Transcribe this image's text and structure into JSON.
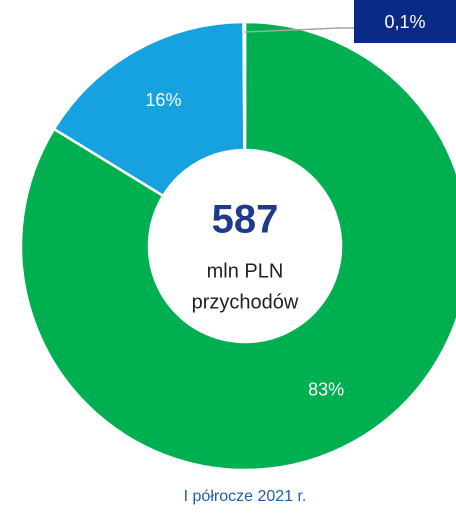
{
  "chart_data": {
    "type": "donut",
    "values": [
      83,
      16,
      0.1
    ],
    "value_labels": [
      "83%",
      "16%",
      "0,1%"
    ],
    "colors": [
      "#00b050",
      "#16a1e0",
      "#d9d9d9"
    ],
    "center_value": 587,
    "center_label": [
      "mln PLN",
      "przychodów"
    ],
    "caption": "I półrocze 2021 r."
  }
}
